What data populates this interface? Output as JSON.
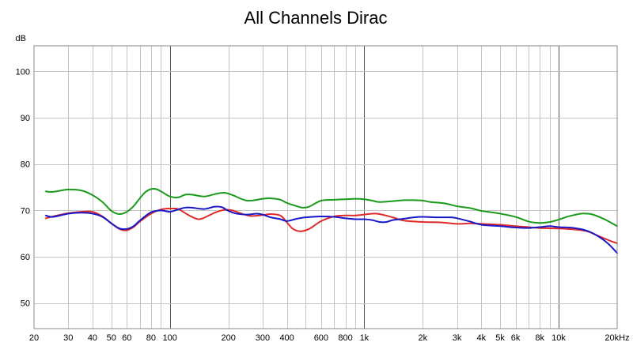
{
  "chart_data": {
    "type": "line",
    "title": "All Channels Dirac",
    "ylabel": "dB",
    "xlabel": "",
    "x_scale": "log",
    "xlim": [
      20,
      20000
    ],
    "ylim": [
      44.5,
      105.5
    ],
    "grid": true,
    "legend": "none",
    "x_ticks": [
      {
        "value": 20,
        "label": "20"
      },
      {
        "value": 30,
        "label": "30"
      },
      {
        "value": 40,
        "label": "40"
      },
      {
        "value": 50,
        "label": "50"
      },
      {
        "value": 60,
        "label": "60"
      },
      {
        "value": 80,
        "label": "80"
      },
      {
        "value": 100,
        "label": "100"
      },
      {
        "value": 200,
        "label": "200"
      },
      {
        "value": 300,
        "label": "300"
      },
      {
        "value": 400,
        "label": "400"
      },
      {
        "value": 600,
        "label": "600"
      },
      {
        "value": 800,
        "label": "800"
      },
      {
        "value": 1000,
        "label": "1k"
      },
      {
        "value": 2000,
        "label": "2k"
      },
      {
        "value": 3000,
        "label": "3k"
      },
      {
        "value": 4000,
        "label": "4k"
      },
      {
        "value": 5000,
        "label": "5k"
      },
      {
        "value": 6000,
        "label": "6k"
      },
      {
        "value": 8000,
        "label": "8k"
      },
      {
        "value": 10000,
        "label": "10k"
      },
      {
        "value": 20000,
        "label": "20kHz"
      }
    ],
    "x_minor_grid": [
      70,
      90,
      500,
      700,
      900,
      5000,
      7000,
      9000
    ],
    "y_ticks": [
      50,
      60,
      70,
      80,
      90,
      100
    ],
    "series": [
      {
        "color": "#1a9a1a",
        "points": [
          [
            23,
            74.1
          ],
          [
            25,
            74
          ],
          [
            30,
            74.5
          ],
          [
            35,
            74.3
          ],
          [
            40,
            73.3
          ],
          [
            45,
            71.8
          ],
          [
            50,
            69.9
          ],
          [
            55,
            69.2
          ],
          [
            60,
            69.7
          ],
          [
            65,
            70.9
          ],
          [
            70,
            72.6
          ],
          [
            75,
            74
          ],
          [
            80,
            74.6
          ],
          [
            85,
            74.6
          ],
          [
            90,
            74.1
          ],
          [
            100,
            73
          ],
          [
            110,
            72.8
          ],
          [
            120,
            73.4
          ],
          [
            130,
            73.4
          ],
          [
            150,
            73
          ],
          [
            170,
            73.5
          ],
          [
            190,
            73.8
          ],
          [
            210,
            73.3
          ],
          [
            250,
            72.1
          ],
          [
            300,
            72.5
          ],
          [
            330,
            72.6
          ],
          [
            370,
            72.3
          ],
          [
            400,
            71.6
          ],
          [
            450,
            70.9
          ],
          [
            480,
            70.6
          ],
          [
            520,
            70.8
          ],
          [
            600,
            72.1
          ],
          [
            700,
            72.3
          ],
          [
            800,
            72.4
          ],
          [
            900,
            72.5
          ],
          [
            1000,
            72.4
          ],
          [
            1100,
            72.1
          ],
          [
            1200,
            71.8
          ],
          [
            1400,
            72
          ],
          [
            1600,
            72.2
          ],
          [
            1800,
            72.2
          ],
          [
            2000,
            72.1
          ],
          [
            2200,
            71.8
          ],
          [
            2600,
            71.5
          ],
          [
            3000,
            70.9
          ],
          [
            3500,
            70.5
          ],
          [
            4000,
            69.9
          ],
          [
            4500,
            69.6
          ],
          [
            5000,
            69.3
          ],
          [
            6000,
            68.6
          ],
          [
            7000,
            67.6
          ],
          [
            8000,
            67.3
          ],
          [
            9000,
            67.5
          ],
          [
            10000,
            68
          ],
          [
            11000,
            68.6
          ],
          [
            12000,
            69
          ],
          [
            13000,
            69.3
          ],
          [
            14000,
            69.3
          ],
          [
            15000,
            69.1
          ],
          [
            17000,
            68.2
          ],
          [
            18500,
            67.4
          ],
          [
            20000,
            66.6
          ]
        ]
      },
      {
        "color": "#e02a2a",
        "points": [
          [
            23,
            68.3
          ],
          [
            25,
            68.7
          ],
          [
            30,
            69.4
          ],
          [
            35,
            69.7
          ],
          [
            40,
            69.7
          ],
          [
            45,
            68.7
          ],
          [
            50,
            67.2
          ],
          [
            55,
            66
          ],
          [
            60,
            65.7
          ],
          [
            65,
            66.4
          ],
          [
            70,
            67.6
          ],
          [
            80,
            69.3
          ],
          [
            90,
            70.2
          ],
          [
            100,
            70.4
          ],
          [
            110,
            70.3
          ],
          [
            120,
            69.4
          ],
          [
            130,
            68.6
          ],
          [
            140,
            68.1
          ],
          [
            150,
            68.4
          ],
          [
            170,
            69.5
          ],
          [
            190,
            70.1
          ],
          [
            210,
            70
          ],
          [
            230,
            69.4
          ],
          [
            260,
            68.8
          ],
          [
            300,
            69
          ],
          [
            330,
            69.2
          ],
          [
            370,
            68.9
          ],
          [
            400,
            67.4
          ],
          [
            430,
            66
          ],
          [
            470,
            65.5
          ],
          [
            520,
            66
          ],
          [
            600,
            67.7
          ],
          [
            700,
            68.7
          ],
          [
            800,
            68.9
          ],
          [
            900,
            68.9
          ],
          [
            1000,
            69.1
          ],
          [
            1100,
            69.3
          ],
          [
            1200,
            69.2
          ],
          [
            1400,
            68.5
          ],
          [
            1600,
            67.8
          ],
          [
            2000,
            67.5
          ],
          [
            2500,
            67.4
          ],
          [
            3000,
            67.1
          ],
          [
            3500,
            67.2
          ],
          [
            4000,
            67.1
          ],
          [
            5000,
            66.9
          ],
          [
            6000,
            66.6
          ],
          [
            7000,
            66.4
          ],
          [
            8000,
            66.2
          ],
          [
            10000,
            66.1
          ],
          [
            12000,
            65.9
          ],
          [
            14000,
            65.5
          ],
          [
            16000,
            64.5
          ],
          [
            18000,
            63.6
          ],
          [
            20000,
            62.9
          ]
        ]
      },
      {
        "color": "#1818c8",
        "points": [
          [
            23,
            68.9
          ],
          [
            25,
            68.6
          ],
          [
            30,
            69.3
          ],
          [
            35,
            69.5
          ],
          [
            40,
            69.3
          ],
          [
            45,
            68.6
          ],
          [
            50,
            67.2
          ],
          [
            55,
            66.1
          ],
          [
            60,
            66
          ],
          [
            65,
            66.6
          ],
          [
            70,
            67.8
          ],
          [
            80,
            69.6
          ],
          [
            90,
            70
          ],
          [
            100,
            69.7
          ],
          [
            110,
            70.2
          ],
          [
            120,
            70.6
          ],
          [
            130,
            70.6
          ],
          [
            150,
            70.3
          ],
          [
            170,
            70.8
          ],
          [
            185,
            70.7
          ],
          [
            200,
            69.9
          ],
          [
            220,
            69.3
          ],
          [
            250,
            69.1
          ],
          [
            280,
            69.3
          ],
          [
            300,
            69.1
          ],
          [
            330,
            68.5
          ],
          [
            370,
            68.1
          ],
          [
            400,
            67.7
          ],
          [
            450,
            68.2
          ],
          [
            500,
            68.5
          ],
          [
            600,
            68.7
          ],
          [
            700,
            68.6
          ],
          [
            800,
            68.3
          ],
          [
            900,
            68.1
          ],
          [
            1000,
            68.1
          ],
          [
            1100,
            67.9
          ],
          [
            1200,
            67.5
          ],
          [
            1300,
            67.5
          ],
          [
            1400,
            67.9
          ],
          [
            1600,
            68.2
          ],
          [
            1800,
            68.5
          ],
          [
            2000,
            68.6
          ],
          [
            2400,
            68.5
          ],
          [
            2800,
            68.5
          ],
          [
            3000,
            68.3
          ],
          [
            3500,
            67.6
          ],
          [
            4000,
            66.9
          ],
          [
            5000,
            66.6
          ],
          [
            6000,
            66.3
          ],
          [
            7000,
            66.2
          ],
          [
            8000,
            66.4
          ],
          [
            9000,
            66.6
          ],
          [
            10000,
            66.4
          ],
          [
            12000,
            66.2
          ],
          [
            14000,
            65.6
          ],
          [
            16000,
            64.4
          ],
          [
            18000,
            62.8
          ],
          [
            19500,
            61.3
          ],
          [
            20000,
            60.8
          ]
        ]
      }
    ]
  }
}
